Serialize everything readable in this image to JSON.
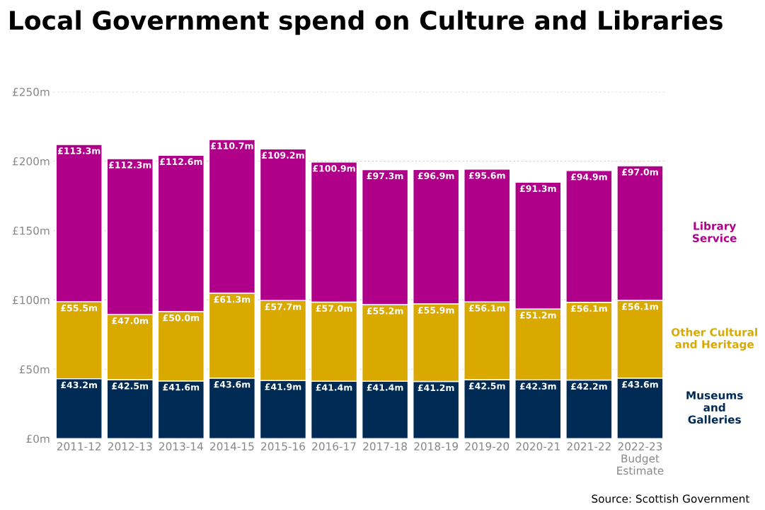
{
  "chart_data": {
    "type": "bar",
    "title": "Local Government spend on Culture and Libraries",
    "categories": [
      "2011-12",
      "2012-13",
      "2013-14",
      "2014-15",
      "2015-16",
      "2016-17",
      "2017-18",
      "2018-19",
      "2019-20",
      "2020-21",
      "2021-22",
      "2022-23\nBudget\nEstimate"
    ],
    "stacked": true,
    "series": [
      {
        "name": "Museums\nand\nGalleries",
        "color": "#002b55",
        "values": [
          43.2,
          42.5,
          41.6,
          43.6,
          41.9,
          41.4,
          41.4,
          41.2,
          42.5,
          42.3,
          42.2,
          43.6
        ],
        "value_labels": [
          "£43.2m",
          "£42.5m",
          "£41.6m",
          "£43.6m",
          "£41.9m",
          "£41.4m",
          "£41.4m",
          "£41.2m",
          "£42.5m",
          "£42.3m",
          "£42.2m",
          "£43.6m"
        ]
      },
      {
        "name": "Other Cultural\nand Heritage",
        "color": "#d9a900",
        "values": [
          55.5,
          47.0,
          50.0,
          61.3,
          57.7,
          57.0,
          55.2,
          55.9,
          56.1,
          51.2,
          56.1,
          56.1
        ],
        "value_labels": [
          "£55.5m",
          "£47.0m",
          "£50.0m",
          "£61.3m",
          "£57.7m",
          "£57.0m",
          "£55.2m",
          "£55.9m",
          "£56.1m",
          "£51.2m",
          "£56.1m",
          "£56.1m"
        ]
      },
      {
        "name": "Library\nService",
        "color": "#b0008a",
        "values": [
          113.3,
          112.3,
          112.6,
          110.7,
          109.2,
          100.9,
          97.3,
          96.9,
          95.6,
          91.3,
          94.9,
          97.0
        ],
        "value_labels": [
          "£113.3m",
          "£112.3m",
          "£112.6m",
          "£110.7m",
          "£109.2m",
          "£100.9m",
          "£97.3m",
          "£96.9m",
          "£95.6m",
          "£91.3m",
          "£94.9m",
          "£97.0m"
        ]
      }
    ],
    "ylim": [
      0,
      250
    ],
    "yticks": [
      {
        "value": 0,
        "label": "£0m"
      },
      {
        "value": 50,
        "label": "£50m"
      },
      {
        "value": 100,
        "label": "£100m"
      },
      {
        "value": 150,
        "label": "£150m"
      },
      {
        "value": 200,
        "label": "£200m"
      },
      {
        "value": 250,
        "label": "£250m"
      }
    ],
    "grid": "y",
    "annotations": [
      "Source: Scottish Government"
    ]
  }
}
